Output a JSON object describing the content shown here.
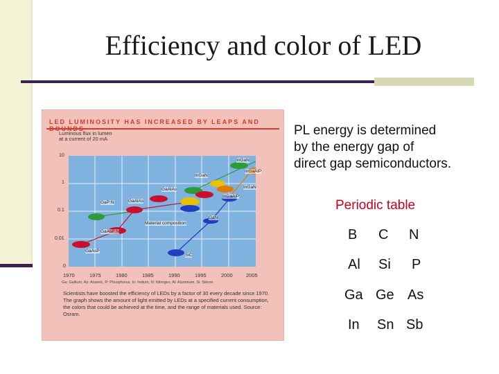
{
  "slide": {
    "title": "Efficiency and color of LED",
    "accent_dark": "#3b1f4d",
    "accent_light": "#d8d8b4"
  },
  "figure": {
    "header": "LED LUMINOSITY HAS INCREASED BY LEAPS AND BOUNDS",
    "ylabel_line1": "Luminous flux in lumen",
    "ylabel_line2": "at a current of 20 mA",
    "yticks": [
      "10",
      "1",
      "0.1",
      "0.01",
      "0"
    ],
    "xticks": [
      "1970",
      "1975",
      "1980",
      "1985",
      "1990",
      "1995",
      "2000",
      "2005"
    ],
    "legend_note": "Ga: Gallium, As: Arsenic, P: Phosphorus, In: Indium, N: Nitrogen, Al: Aluminum, Si: Silicon",
    "caption": "Scientists have boosted the efficiency of LEDs by a factor of 30 every decade since 1970. The graph shows the amount of light emitted by LEDs at a specified current consumption, the colors that could be achieved at the time, and the range of materials used. Source: Osram.",
    "annotation": "Material composition",
    "materials": [
      {
        "label": "GaAsP",
        "color": "#c8102e"
      },
      {
        "label": "GaAsP:N",
        "color": "#c8102e"
      },
      {
        "label": "GaP:N",
        "color": "#2e9b3a"
      },
      {
        "label": "GaAlAs",
        "color": "#c8102e"
      },
      {
        "label": "GaAlAs",
        "color": "#c8102e"
      },
      {
        "label": "InGaN",
        "color": "#2e9b3a"
      },
      {
        "label": "InGaN",
        "color": "#1f3fbf"
      },
      {
        "label": "InGaAlP",
        "color": "#e6c200"
      },
      {
        "label": "InGaAlP",
        "color": "#e07a00"
      },
      {
        "label": "InGaN",
        "color": "#2e9b3a"
      },
      {
        "label": "GaN",
        "color": "#1f3fbf"
      },
      {
        "label": "SiC",
        "color": "#1f3fbf"
      }
    ]
  },
  "text": {
    "pl_line1": "PL energy is determined",
    "pl_line2": "by the  energy gap of",
    "pl_line3": "direct gap semiconductors."
  },
  "periodic": {
    "title": "Periodic table",
    "rows": [
      [
        "B",
        "C",
        "N"
      ],
      [
        "Al",
        "Si",
        "P"
      ],
      [
        "Ga",
        "Ge",
        "As"
      ],
      [
        "In",
        "Sn",
        "Sb"
      ]
    ]
  }
}
